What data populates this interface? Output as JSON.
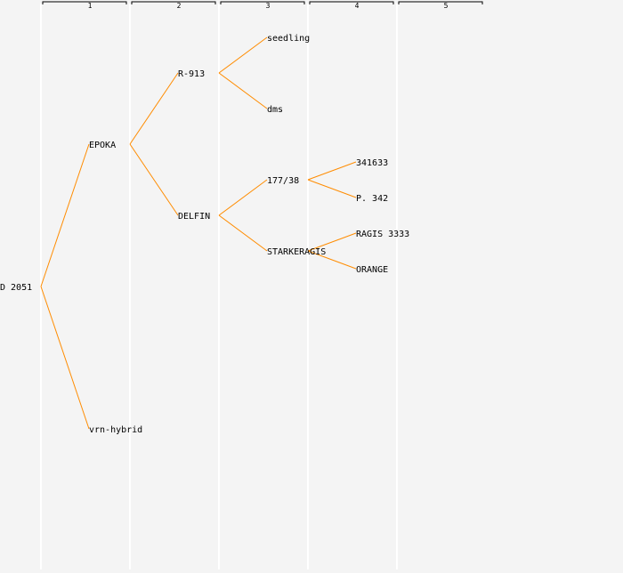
{
  "colors": {
    "background": "#f4f4f4",
    "separator": "#ffffff",
    "header_bracket": "#000000",
    "edge": "#ff8c00",
    "text": "#000000"
  },
  "columns": [
    "1",
    "2",
    "3",
    "4",
    "5"
  ],
  "tree": {
    "label": "D 2051",
    "children": [
      {
        "label": "EPOKA",
        "children": [
          {
            "label": "R-913",
            "children": [
              {
                "label": "seedling",
                "children": []
              },
              {
                "label": "dms",
                "children": []
              }
            ]
          },
          {
            "label": "DELFIN",
            "children": [
              {
                "label": "177/38",
                "children": [
                  {
                    "label": "341633",
                    "children": []
                  },
                  {
                    "label": "P. 342",
                    "children": []
                  }
                ]
              },
              {
                "label": "STARKERAGIS",
                "children": [
                  {
                    "label": "RAGIS 3333",
                    "children": []
                  },
                  {
                    "label": "ORANGE",
                    "children": []
                  }
                ]
              }
            ]
          }
        ]
      },
      {
        "label": "vrn-hybrid",
        "children": []
      }
    ]
  }
}
